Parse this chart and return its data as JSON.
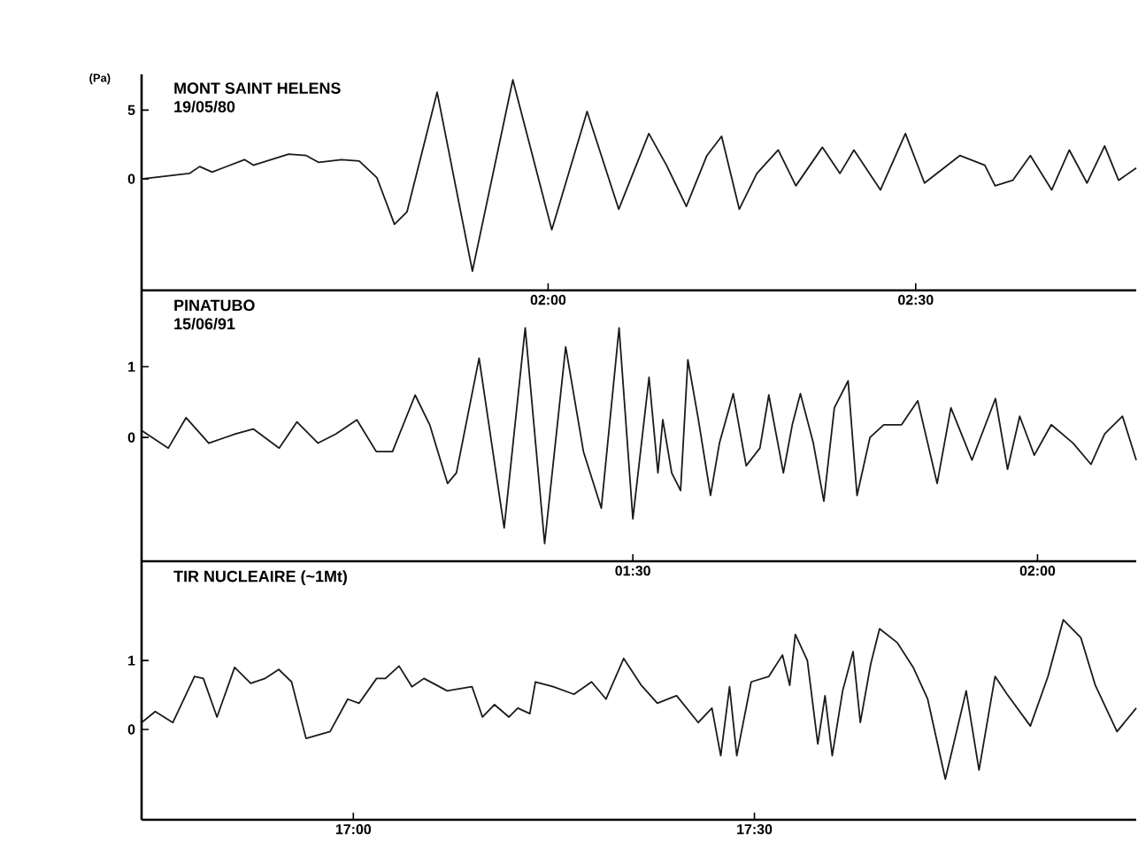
{
  "chart_data": [
    {
      "type": "line",
      "title": "MONT SAINT HELENS",
      "subtitle": "19/05/80",
      "ylabel": "(Pa)",
      "x": [
        1.447,
        1.512,
        1.526,
        1.543,
        1.587,
        1.599,
        1.647,
        1.671,
        1.688,
        1.719,
        1.743,
        1.767,
        1.791,
        1.808,
        1.849,
        1.897,
        1.952,
        2.005,
        2.053,
        2.096,
        2.137,
        2.161,
        2.188,
        2.216,
        2.236,
        2.26,
        2.284,
        2.313,
        2.337,
        2.373,
        2.397,
        2.416,
        2.452,
        2.486,
        2.512,
        2.56,
        2.594,
        2.608,
        2.632,
        2.656,
        2.685,
        2.709,
        2.733,
        2.757,
        2.776,
        2.8
      ],
      "series": [
        {
          "color": "#1a1a1a",
          "values": [
            0,
            0.4,
            0.9,
            0.5,
            1.4,
            1.0,
            1.8,
            1.7,
            1.2,
            1.4,
            1.3,
            0.1,
            -3.3,
            -2.4,
            6.3,
            -6.7,
            7.2,
            -3.7,
            4.9,
            -2.2,
            3.3,
            1.0,
            -2.0,
            1.7,
            3.1,
            -2.2,
            0.4,
            2.1,
            -0.5,
            2.3,
            0.4,
            2.1,
            -0.8,
            3.3,
            -0.3,
            1.7,
            1.0,
            -0.5,
            -0.1,
            1.7,
            -0.8,
            2.1,
            -0.3,
            2.4,
            -0.1,
            0.8
          ]
        }
      ],
      "xlim": [
        1.447,
        2.8
      ],
      "ylim": [
        -8.1,
        7.6
      ],
      "xticks": [
        {
          "value": 2,
          "label": "02:00"
        },
        {
          "value": 2.5,
          "label": "02:30"
        }
      ],
      "yticks": [
        0,
        5
      ]
    },
    {
      "type": "line",
      "title": "PINATUBO",
      "subtitle": "15/06/91",
      "x": [
        0.893,
        0.926,
        0.948,
        0.976,
        1.009,
        1.031,
        1.063,
        1.085,
        1.111,
        1.133,
        1.159,
        1.183,
        1.203,
        1.231,
        1.249,
        1.271,
        1.282,
        1.31,
        1.341,
        1.367,
        1.391,
        1.417,
        1.439,
        1.461,
        1.483,
        1.5,
        1.52,
        1.531,
        1.537,
        1.548,
        1.559,
        1.568,
        1.581,
        1.596,
        1.607,
        1.624,
        1.64,
        1.657,
        1.668,
        1.686,
        1.697,
        1.707,
        1.723,
        1.736,
        1.749,
        1.766,
        1.777,
        1.793,
        1.81,
        1.832,
        1.852,
        1.876,
        1.893,
        1.919,
        1.948,
        1.963,
        1.978,
        1.996,
        2.017,
        2.044,
        2.066,
        2.083,
        2.105,
        2.122
      ],
      "series": [
        {
          "color": "#1a1a1a",
          "values": [
            0.1,
            -0.15,
            0.28,
            -0.08,
            0.05,
            0.12,
            -0.15,
            0.22,
            -0.08,
            0.05,
            0.25,
            -0.2,
            -0.2,
            0.6,
            0.18,
            -0.65,
            -0.5,
            1.12,
            -1.28,
            1.55,
            -1.5,
            1.28,
            -0.2,
            -1.0,
            1.55,
            -1.15,
            0.85,
            -0.5,
            0.25,
            -0.5,
            -0.75,
            1.1,
            0.25,
            -0.82,
            -0.08,
            0.62,
            -0.4,
            -0.15,
            0.6,
            -0.5,
            0.18,
            0.62,
            -0.08,
            -0.9,
            0.42,
            0.8,
            -0.82,
            0.0,
            0.18,
            0.18,
            0.52,
            -0.65,
            0.42,
            -0.32,
            0.55,
            -0.45,
            0.3,
            -0.25,
            0.18,
            -0.08,
            -0.38,
            0.05,
            0.3,
            -0.32
          ]
        }
      ],
      "xlim": [
        0.893,
        2.122
      ],
      "ylim": [
        -1.75,
        2.08
      ],
      "xticks": [
        {
          "value": 1.5,
          "label": "01:30"
        },
        {
          "value": 2,
          "label": "02:00"
        }
      ],
      "yticks": [
        0,
        1
      ]
    },
    {
      "type": "line",
      "title": "TIR NUCLEAIRE (~1Mt)",
      "x": [
        16.736,
        16.753,
        16.775,
        16.802,
        16.813,
        16.83,
        16.852,
        16.872,
        16.89,
        16.907,
        16.923,
        16.941,
        16.971,
        16.993,
        17.007,
        17.029,
        17.04,
        17.057,
        17.073,
        17.088,
        17.117,
        17.148,
        17.161,
        17.176,
        17.194,
        17.205,
        17.22,
        17.227,
        17.249,
        17.275,
        17.297,
        17.315,
        17.337,
        17.359,
        17.379,
        17.403,
        17.43,
        17.447,
        17.458,
        17.469,
        17.478,
        17.496,
        17.518,
        17.535,
        17.544,
        17.551,
        17.566,
        17.579,
        17.588,
        17.597,
        17.61,
        17.623,
        17.632,
        17.645,
        17.656,
        17.678,
        17.698,
        17.716,
        17.738,
        17.764,
        17.78,
        17.8,
        17.815,
        17.844,
        17.866,
        17.885,
        17.907,
        17.925,
        17.952,
        17.976
      ],
      "series": [
        {
          "color": "#1a1a1a",
          "values": [
            0.1,
            0.26,
            0.1,
            0.77,
            0.74,
            0.18,
            0.9,
            0.67,
            0.74,
            0.87,
            0.69,
            -0.13,
            -0.03,
            0.44,
            0.38,
            0.74,
            0.74,
            0.92,
            0.62,
            0.74,
            0.56,
            0.62,
            0.18,
            0.36,
            0.18,
            0.31,
            0.23,
            0.69,
            0.62,
            0.51,
            0.69,
            0.44,
            1.03,
            0.64,
            0.38,
            0.49,
            0.1,
            0.31,
            -0.38,
            0.62,
            -0.38,
            0.69,
            0.77,
            1.08,
            0.64,
            1.38,
            1.0,
            -0.21,
            0.49,
            -0.38,
            0.56,
            1.13,
            0.1,
            0.95,
            1.46,
            1.26,
            0.9,
            0.44,
            -0.72,
            0.56,
            -0.59,
            0.77,
            0.51,
            0.05,
            0.77,
            1.59,
            1.33,
            0.64,
            -0.03,
            0.31
          ]
        }
      ],
      "xlim": [
        16.736,
        17.976
      ],
      "ylim": [
        -1.31,
        2.44
      ],
      "xticks": [
        {
          "value": 17,
          "label": "17:00"
        },
        {
          "value": 17.5,
          "label": "17:30"
        }
      ],
      "yticks": [
        0,
        1
      ]
    }
  ]
}
